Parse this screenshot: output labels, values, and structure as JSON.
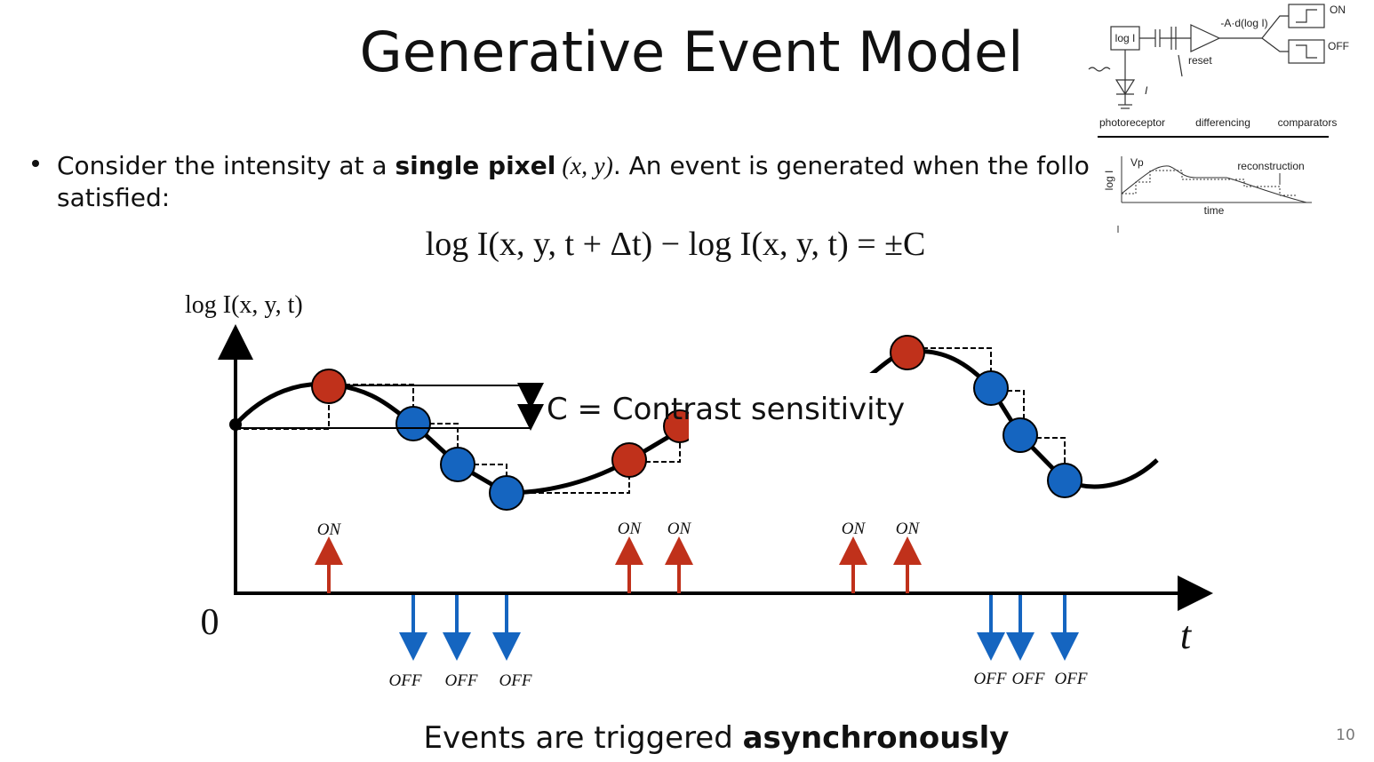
{
  "title": "Generative Event Model",
  "bullet": {
    "before": "Consider the intensity at a ",
    "bold": "single pixel",
    "math": " (x, y)",
    "after": ". An event is generated when the followin",
    "line2": "satisfied:"
  },
  "equation": "log I(x, y, t + Δt) − log I(x, y, t) = ±C",
  "plot": {
    "y_label": "log I(x, y, t)",
    "origin_label": "0",
    "x_label": "t",
    "contrast_label": "C = Contrast sensitivity",
    "on_labels": [
      "ON",
      "ON",
      "ON",
      "ON",
      "ON"
    ],
    "off_labels": [
      "OFF",
      "OFF",
      "OFF",
      "OFF",
      "OFF",
      "OFF"
    ]
  },
  "caption": {
    "before": "Events are triggered ",
    "bold": "asynchronously"
  },
  "page_number": "10",
  "inset_circuit": {
    "log_box": "log I",
    "amp_label": "-A·d(log I)",
    "on": "ON",
    "off": "OFF",
    "reset": "reset",
    "current": "I",
    "photoreceptor": "photoreceptor",
    "differencing": "differencing",
    "comparators": "comparators"
  },
  "inset_plot": {
    "reconstruction": "reconstruction",
    "y_label": "log I",
    "x_label": "time",
    "vp": "Vp"
  }
}
